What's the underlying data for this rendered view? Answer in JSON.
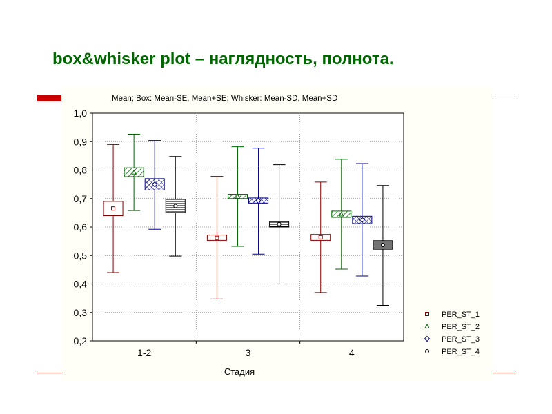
{
  "slide": {
    "title": "box&whisker plot – наглядность, полнота."
  },
  "chart_data": {
    "type": "box",
    "title": "Mean; Box: Mean-SE, Mean+SE; Whisker: Mean-SD, Mean+SD",
    "xlabel": "Стадия",
    "ylabel": "",
    "categories": [
      "1-2",
      "3",
      "4"
    ],
    "ylim": [
      0.2,
      1.0
    ],
    "yticks": [
      0.2,
      0.3,
      0.4,
      0.5,
      0.6,
      0.7,
      0.8,
      0.9,
      1.0
    ],
    "ytick_labels": [
      "0,2",
      "0,3",
      "0,4",
      "0,5",
      "0,6",
      "0,7",
      "0,8",
      "0,9",
      "1,0"
    ],
    "grid": true,
    "legend_position": "bottom-right",
    "series": [
      {
        "name": "PER_ST_1",
        "marker": "square",
        "color": "#800000",
        "fill": "none",
        "values": [
          {
            "mean": 0.665,
            "box_low": 0.64,
            "box_high": 0.69,
            "whisker_low": 0.44,
            "whisker_high": 0.89
          },
          {
            "mean": 0.562,
            "box_low": 0.553,
            "box_high": 0.572,
            "whisker_low": 0.347,
            "whisker_high": 0.778
          },
          {
            "mean": 0.564,
            "box_low": 0.553,
            "box_high": 0.574,
            "whisker_low": 0.37,
            "whisker_high": 0.758
          }
        ]
      },
      {
        "name": "PER_ST_2",
        "marker": "triangle",
        "color": "#006600",
        "fill": "diagonal",
        "values": [
          {
            "mean": 0.792,
            "box_low": 0.777,
            "box_high": 0.808,
            "whisker_low": 0.658,
            "whisker_high": 0.926
          },
          {
            "mean": 0.707,
            "box_low": 0.7,
            "box_high": 0.715,
            "whisker_low": 0.532,
            "whisker_high": 0.882
          },
          {
            "mean": 0.645,
            "box_low": 0.634,
            "box_high": 0.656,
            "whisker_low": 0.452,
            "whisker_high": 0.838
          }
        ]
      },
      {
        "name": "PER_ST_3",
        "marker": "diamond",
        "color": "#000080",
        "fill": "crosshatch",
        "values": [
          {
            "mean": 0.75,
            "box_low": 0.73,
            "box_high": 0.77,
            "whisker_low": 0.592,
            "whisker_high": 0.904
          },
          {
            "mean": 0.692,
            "box_low": 0.684,
            "box_high": 0.702,
            "whisker_low": 0.505,
            "whisker_high": 0.877
          },
          {
            "mean": 0.625,
            "box_low": 0.612,
            "box_high": 0.638,
            "whisker_low": 0.428,
            "whisker_high": 0.823
          }
        ]
      },
      {
        "name": "PER_ST_4",
        "marker": "circle",
        "color": "#000000",
        "fill": "horizontal",
        "values": [
          {
            "mean": 0.674,
            "box_low": 0.65,
            "box_high": 0.698,
            "whisker_low": 0.498,
            "whisker_high": 0.848
          },
          {
            "mean": 0.61,
            "box_low": 0.6,
            "box_high": 0.62,
            "whisker_low": 0.4,
            "whisker_high": 0.819
          },
          {
            "mean": 0.537,
            "box_low": 0.522,
            "box_high": 0.552,
            "whisker_low": 0.325,
            "whisker_high": 0.746
          }
        ]
      }
    ]
  }
}
